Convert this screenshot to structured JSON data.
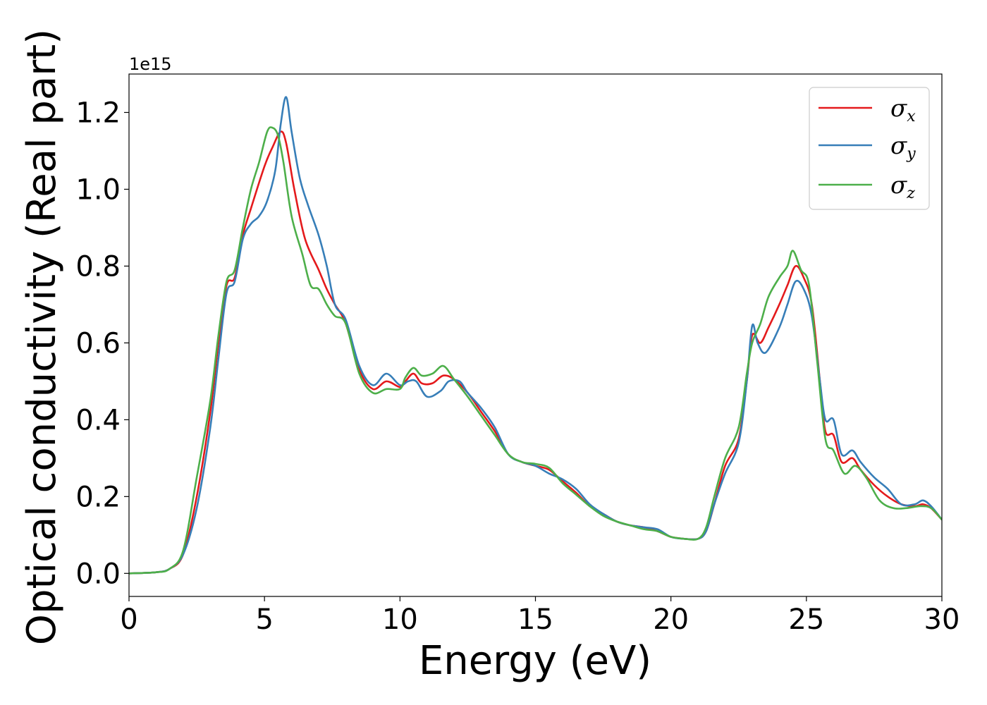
{
  "chart_data": {
    "type": "line",
    "title": "",
    "xlabel": "Energy (eV)",
    "ylabel": "Optical conductivity (Real part)",
    "y_offset_label": "1e15",
    "xlim": [
      0,
      30
    ],
    "ylim": [
      -0.06,
      1.3
    ],
    "xticks": [
      0,
      5,
      10,
      15,
      20,
      25,
      30
    ],
    "xtick_labels": [
      "0",
      "5",
      "10",
      "15",
      "20",
      "25",
      "30"
    ],
    "yticks": [
      0.0,
      0.2,
      0.4,
      0.6,
      0.8,
      1.0,
      1.2
    ],
    "ytick_labels": [
      "0.0",
      "0.2",
      "0.4",
      "0.6",
      "0.8",
      "1.0",
      "1.2"
    ],
    "grid": false,
    "legend_position": "top-right",
    "series": [
      {
        "name": "σx",
        "symbol": "σ",
        "subscript": "x",
        "color": "#e41a1c",
        "points": [
          [
            0,
            0.0
          ],
          [
            1,
            0.003
          ],
          [
            1.5,
            0.012
          ],
          [
            2,
            0.05
          ],
          [
            2.5,
            0.2
          ],
          [
            3,
            0.42
          ],
          [
            3.3,
            0.6
          ],
          [
            3.6,
            0.75
          ],
          [
            3.9,
            0.77
          ],
          [
            4.2,
            0.88
          ],
          [
            4.5,
            0.95
          ],
          [
            5,
            1.06
          ],
          [
            5.3,
            1.11
          ],
          [
            5.6,
            1.15
          ],
          [
            5.8,
            1.12
          ],
          [
            6.1,
            1.0
          ],
          [
            6.5,
            0.87
          ],
          [
            7,
            0.79
          ],
          [
            7.3,
            0.74
          ],
          [
            7.6,
            0.7
          ],
          [
            8,
            0.65
          ],
          [
            8.5,
            0.53
          ],
          [
            9,
            0.48
          ],
          [
            9.5,
            0.5
          ],
          [
            10,
            0.485
          ],
          [
            10.2,
            0.5
          ],
          [
            10.5,
            0.52
          ],
          [
            10.8,
            0.495
          ],
          [
            11.2,
            0.495
          ],
          [
            11.6,
            0.515
          ],
          [
            12,
            0.505
          ],
          [
            12.5,
            0.47
          ],
          [
            13,
            0.42
          ],
          [
            13.5,
            0.37
          ],
          [
            14,
            0.31
          ],
          [
            14.5,
            0.29
          ],
          [
            15,
            0.28
          ],
          [
            15.5,
            0.27
          ],
          [
            16,
            0.24
          ],
          [
            16.5,
            0.21
          ],
          [
            17,
            0.175
          ],
          [
            17.5,
            0.155
          ],
          [
            18,
            0.135
          ],
          [
            18.5,
            0.125
          ],
          [
            19,
            0.12
          ],
          [
            19.5,
            0.11
          ],
          [
            20,
            0.095
          ],
          [
            20.5,
            0.09
          ],
          [
            21,
            0.09
          ],
          [
            21.3,
            0.11
          ],
          [
            21.6,
            0.18
          ],
          [
            22,
            0.28
          ],
          [
            22.5,
            0.35
          ],
          [
            22.8,
            0.5
          ],
          [
            23,
            0.62
          ],
          [
            23.3,
            0.6
          ],
          [
            23.6,
            0.64
          ],
          [
            24,
            0.7
          ],
          [
            24.3,
            0.75
          ],
          [
            24.6,
            0.8
          ],
          [
            24.9,
            0.77
          ],
          [
            25.2,
            0.7
          ],
          [
            25.5,
            0.5
          ],
          [
            25.7,
            0.37
          ],
          [
            26,
            0.36
          ],
          [
            26.3,
            0.29
          ],
          [
            26.7,
            0.3
          ],
          [
            27,
            0.27
          ],
          [
            27.5,
            0.23
          ],
          [
            28,
            0.2
          ],
          [
            28.5,
            0.18
          ],
          [
            29,
            0.175
          ],
          [
            29.3,
            0.18
          ],
          [
            29.6,
            0.17
          ],
          [
            30,
            0.14
          ]
        ]
      },
      {
        "name": "σy",
        "symbol": "σ",
        "subscript": "y",
        "color": "#377eb8",
        "points": [
          [
            0,
            0.0
          ],
          [
            1,
            0.003
          ],
          [
            1.5,
            0.012
          ],
          [
            2,
            0.05
          ],
          [
            2.5,
            0.17
          ],
          [
            3,
            0.38
          ],
          [
            3.3,
            0.56
          ],
          [
            3.6,
            0.73
          ],
          [
            3.9,
            0.76
          ],
          [
            4.2,
            0.87
          ],
          [
            4.5,
            0.91
          ],
          [
            4.8,
            0.93
          ],
          [
            5.1,
            0.97
          ],
          [
            5.4,
            1.05
          ],
          [
            5.6,
            1.17
          ],
          [
            5.8,
            1.24
          ],
          [
            6,
            1.15
          ],
          [
            6.3,
            1.03
          ],
          [
            6.6,
            0.96
          ],
          [
            7,
            0.88
          ],
          [
            7.3,
            0.8
          ],
          [
            7.6,
            0.7
          ],
          [
            8,
            0.66
          ],
          [
            8.5,
            0.54
          ],
          [
            9,
            0.49
          ],
          [
            9.5,
            0.52
          ],
          [
            10,
            0.49
          ],
          [
            10.3,
            0.5
          ],
          [
            10.6,
            0.5
          ],
          [
            11,
            0.46
          ],
          [
            11.5,
            0.475
          ],
          [
            11.8,
            0.5
          ],
          [
            12.2,
            0.5
          ],
          [
            12.5,
            0.47
          ],
          [
            13,
            0.43
          ],
          [
            13.5,
            0.38
          ],
          [
            14,
            0.31
          ],
          [
            14.5,
            0.29
          ],
          [
            15,
            0.28
          ],
          [
            15.5,
            0.26
          ],
          [
            16,
            0.245
          ],
          [
            16.5,
            0.22
          ],
          [
            17,
            0.18
          ],
          [
            17.5,
            0.155
          ],
          [
            18,
            0.135
          ],
          [
            18.5,
            0.125
          ],
          [
            19,
            0.12
          ],
          [
            19.5,
            0.115
          ],
          [
            20,
            0.095
          ],
          [
            20.5,
            0.09
          ],
          [
            21,
            0.09
          ],
          [
            21.3,
            0.11
          ],
          [
            21.6,
            0.18
          ],
          [
            22,
            0.26
          ],
          [
            22.5,
            0.34
          ],
          [
            22.8,
            0.5
          ],
          [
            23,
            0.645
          ],
          [
            23.2,
            0.6
          ],
          [
            23.5,
            0.575
          ],
          [
            24,
            0.64
          ],
          [
            24.3,
            0.7
          ],
          [
            24.6,
            0.76
          ],
          [
            24.9,
            0.74
          ],
          [
            25.2,
            0.67
          ],
          [
            25.5,
            0.5
          ],
          [
            25.7,
            0.4
          ],
          [
            26,
            0.4
          ],
          [
            26.3,
            0.31
          ],
          [
            26.7,
            0.32
          ],
          [
            27,
            0.29
          ],
          [
            27.5,
            0.25
          ],
          [
            28,
            0.22
          ],
          [
            28.5,
            0.18
          ],
          [
            29,
            0.18
          ],
          [
            29.3,
            0.19
          ],
          [
            29.6,
            0.175
          ],
          [
            30,
            0.14
          ]
        ]
      },
      {
        "name": "σz",
        "symbol": "σ",
        "subscript": "z",
        "color": "#4daf4a",
        "points": [
          [
            0,
            0.0
          ],
          [
            1,
            0.003
          ],
          [
            1.5,
            0.012
          ],
          [
            2,
            0.06
          ],
          [
            2.5,
            0.25
          ],
          [
            3,
            0.45
          ],
          [
            3.3,
            0.62
          ],
          [
            3.6,
            0.76
          ],
          [
            3.9,
            0.79
          ],
          [
            4.2,
            0.9
          ],
          [
            4.5,
            1.0
          ],
          [
            4.8,
            1.07
          ],
          [
            5.1,
            1.15
          ],
          [
            5.3,
            1.16
          ],
          [
            5.5,
            1.14
          ],
          [
            5.7,
            1.07
          ],
          [
            6,
            0.93
          ],
          [
            6.4,
            0.83
          ],
          [
            6.7,
            0.75
          ],
          [
            7,
            0.74
          ],
          [
            7.3,
            0.7
          ],
          [
            7.6,
            0.67
          ],
          [
            8,
            0.65
          ],
          [
            8.5,
            0.52
          ],
          [
            9,
            0.47
          ],
          [
            9.5,
            0.48
          ],
          [
            10,
            0.48
          ],
          [
            10.2,
            0.51
          ],
          [
            10.5,
            0.535
          ],
          [
            10.8,
            0.515
          ],
          [
            11.2,
            0.52
          ],
          [
            11.6,
            0.54
          ],
          [
            12,
            0.505
          ],
          [
            12.5,
            0.46
          ],
          [
            13,
            0.41
          ],
          [
            13.5,
            0.36
          ],
          [
            14,
            0.31
          ],
          [
            14.5,
            0.29
          ],
          [
            15,
            0.285
          ],
          [
            15.5,
            0.275
          ],
          [
            16,
            0.235
          ],
          [
            16.5,
            0.205
          ],
          [
            17,
            0.175
          ],
          [
            17.5,
            0.15
          ],
          [
            18,
            0.135
          ],
          [
            18.5,
            0.125
          ],
          [
            19,
            0.115
          ],
          [
            19.5,
            0.11
          ],
          [
            20,
            0.095
          ],
          [
            20.5,
            0.09
          ],
          [
            21,
            0.09
          ],
          [
            21.3,
            0.12
          ],
          [
            21.6,
            0.2
          ],
          [
            22,
            0.3
          ],
          [
            22.5,
            0.38
          ],
          [
            22.8,
            0.52
          ],
          [
            23,
            0.6
          ],
          [
            23.3,
            0.65
          ],
          [
            23.6,
            0.72
          ],
          [
            24,
            0.77
          ],
          [
            24.3,
            0.8
          ],
          [
            24.5,
            0.84
          ],
          [
            24.8,
            0.79
          ],
          [
            25.1,
            0.75
          ],
          [
            25.4,
            0.55
          ],
          [
            25.7,
            0.35
          ],
          [
            26,
            0.32
          ],
          [
            26.4,
            0.26
          ],
          [
            26.8,
            0.28
          ],
          [
            27.2,
            0.25
          ],
          [
            27.7,
            0.19
          ],
          [
            28.2,
            0.17
          ],
          [
            28.7,
            0.17
          ],
          [
            29.2,
            0.175
          ],
          [
            29.6,
            0.17
          ],
          [
            30,
            0.14
          ]
        ]
      }
    ]
  }
}
